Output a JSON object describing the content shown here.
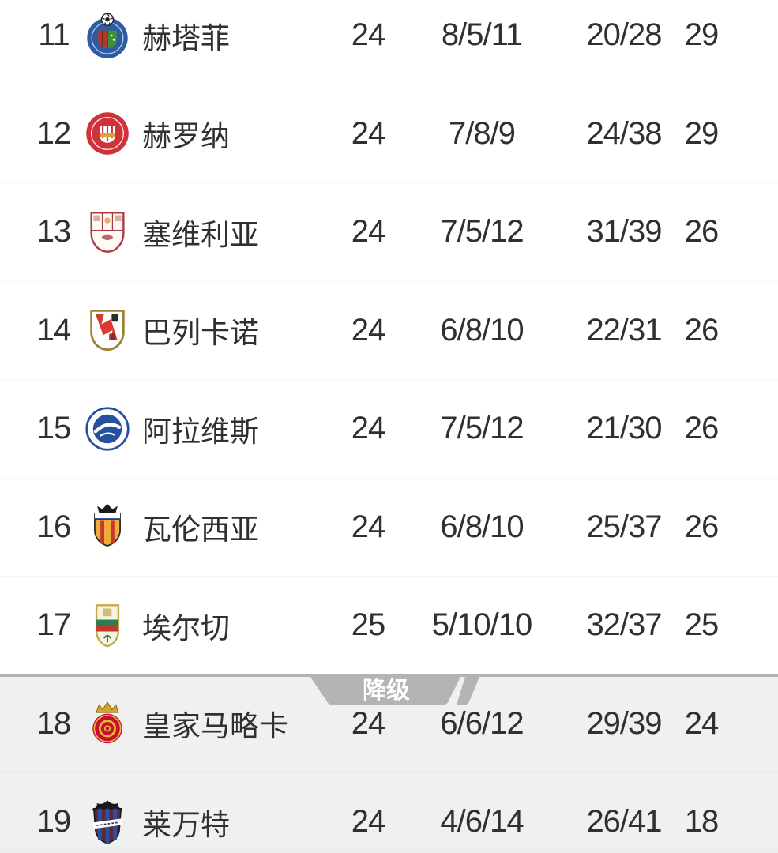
{
  "page": {
    "background": "#ffffff"
  },
  "colors": {
    "text": "#303030",
    "row_background": "#ffffff",
    "relegation_row_background": "#f0f0f0",
    "relegation_divider_gray": "#b4b4b4",
    "divider_label_color": "#ffffff"
  },
  "relegation_divider": {
    "label": "降级"
  },
  "table": {
    "rows": [
      {
        "rank": "11",
        "team": "赫塔菲",
        "played": "24",
        "win_draw_loss": "8/5/11",
        "goals_for_against": "20/28",
        "points": "29",
        "zone": "normal",
        "badge_icon": "getafe-badge"
      },
      {
        "rank": "12",
        "team": "赫罗纳",
        "played": "24",
        "win_draw_loss": "7/8/9",
        "goals_for_against": "24/38",
        "points": "29",
        "zone": "normal",
        "badge_icon": "girona-badge"
      },
      {
        "rank": "13",
        "team": "塞维利亚",
        "played": "24",
        "win_draw_loss": "7/5/12",
        "goals_for_against": "31/39",
        "points": "26",
        "zone": "normal",
        "badge_icon": "sevilla-badge"
      },
      {
        "rank": "14",
        "team": "巴列卡诺",
        "played": "24",
        "win_draw_loss": "6/8/10",
        "goals_for_against": "22/31",
        "points": "26",
        "zone": "normal",
        "badge_icon": "rayo-vallecano-badge"
      },
      {
        "rank": "15",
        "team": "阿拉维斯",
        "played": "24",
        "win_draw_loss": "7/5/12",
        "goals_for_against": "21/30",
        "points": "26",
        "zone": "normal",
        "badge_icon": "alaves-badge"
      },
      {
        "rank": "16",
        "team": "瓦伦西亚",
        "played": "24",
        "win_draw_loss": "6/8/10",
        "goals_for_against": "25/37",
        "points": "26",
        "zone": "normal",
        "badge_icon": "valencia-badge"
      },
      {
        "rank": "17",
        "team": "埃尔切",
        "played": "25",
        "win_draw_loss": "5/10/10",
        "goals_for_against": "32/37",
        "points": "25",
        "zone": "normal",
        "badge_icon": "elche-badge"
      },
      {
        "rank": "18",
        "team": "皇家马略卡",
        "played": "24",
        "win_draw_loss": "6/6/12",
        "goals_for_against": "29/39",
        "points": "24",
        "zone": "relegation",
        "badge_icon": "mallorca-badge"
      },
      {
        "rank": "19",
        "team": "莱万特",
        "played": "24",
        "win_draw_loss": "4/6/14",
        "goals_for_against": "26/41",
        "points": "18",
        "zone": "relegation",
        "badge_icon": "levante-badge"
      }
    ]
  }
}
